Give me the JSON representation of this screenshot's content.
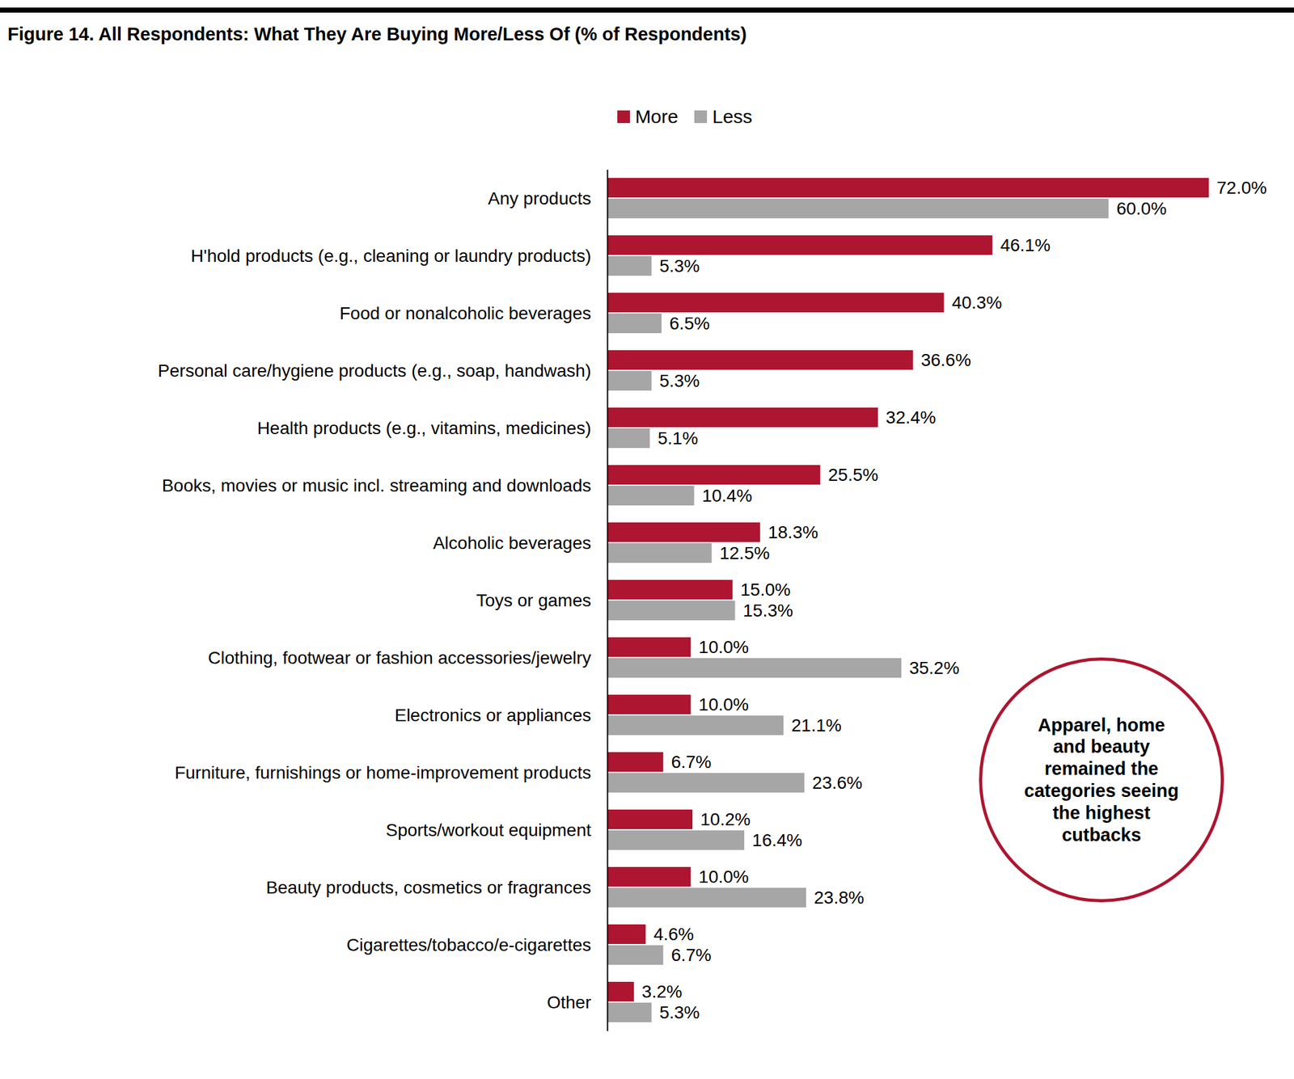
{
  "chart_data": {
    "type": "bar",
    "orientation": "horizontal",
    "title": "Figure 14. All Respondents: What They Are Buying More/Less Of (% of Respondents)",
    "categories": [
      "Any products",
      "H'hold products (e.g., cleaning or laundry products)",
      "Food or nonalcoholic beverages",
      "Personal care/hygiene products (e.g., soap, handwash)",
      "Health products (e.g., vitamins, medicines)",
      "Books, movies or music incl. streaming and downloads",
      "Alcoholic beverages",
      "Toys or games",
      "Clothing, footwear or fashion accessories/jewelry",
      "Electronics or appliances",
      "Furniture, furnishings or home-improvement products",
      "Sports/workout equipment",
      "Beauty products, cosmetics or fragrances",
      "Cigarettes/tobacco/e-cigarettes",
      "Other"
    ],
    "series": [
      {
        "name": "More",
        "color": "#ae1530",
        "values": [
          72.0,
          46.1,
          40.3,
          36.6,
          32.4,
          25.5,
          18.3,
          15.0,
          10.0,
          10.0,
          6.7,
          10.2,
          10.0,
          4.6,
          3.2
        ],
        "value_labels": [
          "72.0%",
          "46.1%",
          "40.3%",
          "36.6%",
          "32.4%",
          "25.5%",
          "18.3%",
          "15.0%",
          "10.0%",
          "10.0%",
          "6.7%",
          "10.2%",
          "10.0%",
          "4.6%",
          "3.2%"
        ]
      },
      {
        "name": "Less",
        "color": "#a6a6a6",
        "values": [
          60.0,
          5.3,
          6.5,
          5.3,
          5.1,
          10.4,
          12.5,
          15.3,
          35.2,
          21.1,
          23.6,
          16.4,
          23.8,
          6.7,
          5.3
        ],
        "value_labels": [
          "60.0%",
          "5.3%",
          "6.5%",
          "5.3%",
          "5.1%",
          "10.4%",
          "12.5%",
          "15.3%",
          "35.2%",
          "21.1%",
          "23.6%",
          "16.4%",
          "23.8%",
          "6.7%",
          "5.3%"
        ]
      }
    ],
    "data_labels": true,
    "tick_labels": "y",
    "legend": "top",
    "annotations": [
      "Apparel, home and beauty remained the categories seeing the highest cutbacks"
    ]
  }
}
